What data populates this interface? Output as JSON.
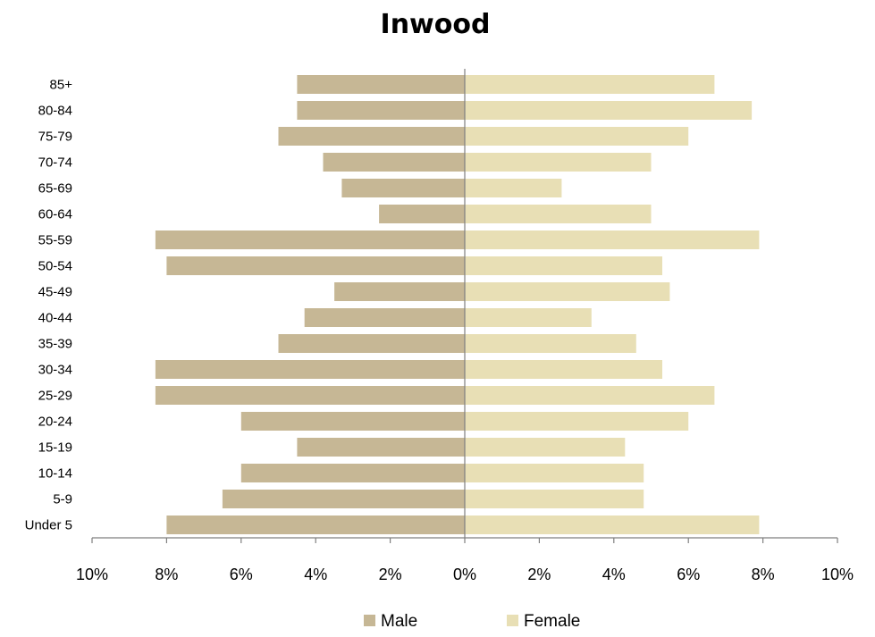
{
  "chart_data": {
    "type": "bar",
    "orientation": "horizontal",
    "layout": "population-pyramid",
    "title": "Inwood",
    "xlabel": "",
    "ylabel": "",
    "xlim": [
      -10,
      10
    ],
    "x_tick_values": [
      -10,
      -8,
      -6,
      -4,
      -2,
      0,
      2,
      4,
      6,
      8,
      10
    ],
    "x_tick_labels": [
      "10%",
      "8%",
      "6%",
      "4%",
      "2%",
      "0%",
      "2%",
      "4%",
      "6%",
      "8%",
      "10%"
    ],
    "categories": [
      "Under 5",
      "5-9",
      "10-14",
      "15-19",
      "20-24",
      "25-29",
      "30-34",
      "35-39",
      "40-44",
      "45-49",
      "50-54",
      "55-59",
      "60-64",
      "65-69",
      "70-74",
      "75-79",
      "80-84",
      "85+"
    ],
    "series": [
      {
        "name": "Male",
        "side": "left",
        "color": "#c6b795",
        "values": [
          8.0,
          6.5,
          6.0,
          4.5,
          6.0,
          8.3,
          8.3,
          5.0,
          4.3,
          3.5,
          8.0,
          8.3,
          2.3,
          3.3,
          3.8,
          5.0,
          4.5,
          4.5
        ]
      },
      {
        "name": "Female",
        "side": "right",
        "color": "#e8dfb5",
        "values": [
          7.9,
          4.8,
          4.8,
          4.3,
          6.0,
          6.7,
          5.3,
          4.6,
          3.4,
          5.5,
          5.3,
          7.9,
          5.0,
          2.6,
          5.0,
          6.0,
          7.7,
          6.7
        ]
      }
    ],
    "legend_position": "bottom",
    "grid": false
  }
}
